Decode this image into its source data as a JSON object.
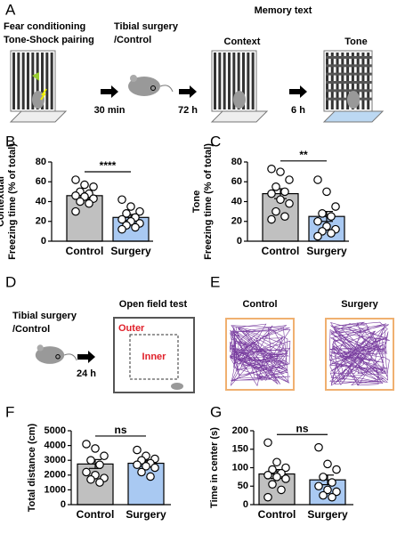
{
  "figure": {
    "panel_labels": [
      "A",
      "B",
      "C",
      "D",
      "E",
      "F",
      "G"
    ],
    "panel_a": {
      "conditioning": [
        "Fear conditioning",
        "Tone-Shock pairing"
      ],
      "surgery": [
        "Tibial surgery",
        "/Control"
      ],
      "memory_test": "Memory text",
      "context": "Context",
      "tone": "Tone",
      "intervals": [
        "30 min",
        "72 h",
        "6 h"
      ]
    },
    "panel_d": {
      "surgery": [
        "Tibial surgery",
        "/Control"
      ],
      "interval": "24 h",
      "test": "Open field test",
      "outer": "Outer",
      "inner": "Inner"
    },
    "panel_e": {
      "groups": [
        "Control",
        "Surgery"
      ]
    }
  },
  "chart_data": [
    {
      "type": "bar",
      "ylabel": [
        "Contextual",
        "Freezing time (% of total)"
      ],
      "categories": [
        "Control",
        "Surgery"
      ],
      "values": [
        46,
        24
      ],
      "errors": [
        3,
        3
      ],
      "colors": [
        "#c0c0c0",
        "#a9c9f2"
      ],
      "points": [
        [
          62,
          57,
          55,
          50,
          48,
          46,
          45,
          43,
          40,
          38,
          30
        ],
        [
          42,
          35,
          30,
          28,
          24,
          22,
          20,
          18,
          16,
          14,
          12
        ]
      ],
      "ylim": [
        0,
        80
      ],
      "yticks": [
        0,
        20,
        40,
        60,
        80
      ],
      "significance": "****"
    },
    {
      "type": "bar",
      "ylabel": [
        "Tone",
        "Freezing time (% of total)"
      ],
      "categories": [
        "Control",
        "Surgery"
      ],
      "values": [
        48,
        25
      ],
      "errors": [
        5,
        5
      ],
      "colors": [
        "#c0c0c0",
        "#a9c9f2"
      ],
      "points": [
        [
          73,
          70,
          62,
          55,
          50,
          48,
          42,
          38,
          30,
          25,
          22
        ],
        [
          62,
          50,
          35,
          28,
          25,
          20,
          15,
          12,
          10,
          8,
          5
        ]
      ],
      "ylim": [
        0,
        80
      ],
      "yticks": [
        0,
        20,
        40,
        60,
        80
      ],
      "significance": "**"
    },
    {
      "type": "bar",
      "ylabel": [
        "Total distance (cm)"
      ],
      "categories": [
        "Control",
        "Surgery"
      ],
      "values": [
        2750,
        2800
      ],
      "errors": [
        300,
        200
      ],
      "colors": [
        "#c0c0c0",
        "#a9c9f2"
      ],
      "points": [
        [
          4100,
          3800,
          3300,
          3000,
          2700,
          2200,
          2000,
          1800,
          1700,
          1500
        ],
        [
          3700,
          3300,
          3100,
          3000,
          2800,
          2700,
          2600,
          2500,
          2200,
          1900
        ]
      ],
      "ylim": [
        0,
        5000
      ],
      "yticks": [
        0,
        1000,
        2000,
        3000,
        4000,
        5000
      ],
      "significance": "ns"
    },
    {
      "type": "bar",
      "ylabel": [
        "Time in center (s)"
      ],
      "categories": [
        "Control",
        "Surgery"
      ],
      "values": [
        83,
        67
      ],
      "errors": [
        12,
        13
      ],
      "colors": [
        "#c0c0c0",
        "#a9c9f2"
      ],
      "points": [
        [
          168,
          115,
          100,
          95,
          85,
          80,
          75,
          70,
          55,
          40,
          20
        ],
        [
          155,
          110,
          95,
          75,
          60,
          50,
          40,
          35,
          25,
          20
        ]
      ],
      "ylim": [
        0,
        200
      ],
      "yticks": [
        0,
        50,
        100,
        150,
        200
      ],
      "significance": "ns"
    }
  ]
}
